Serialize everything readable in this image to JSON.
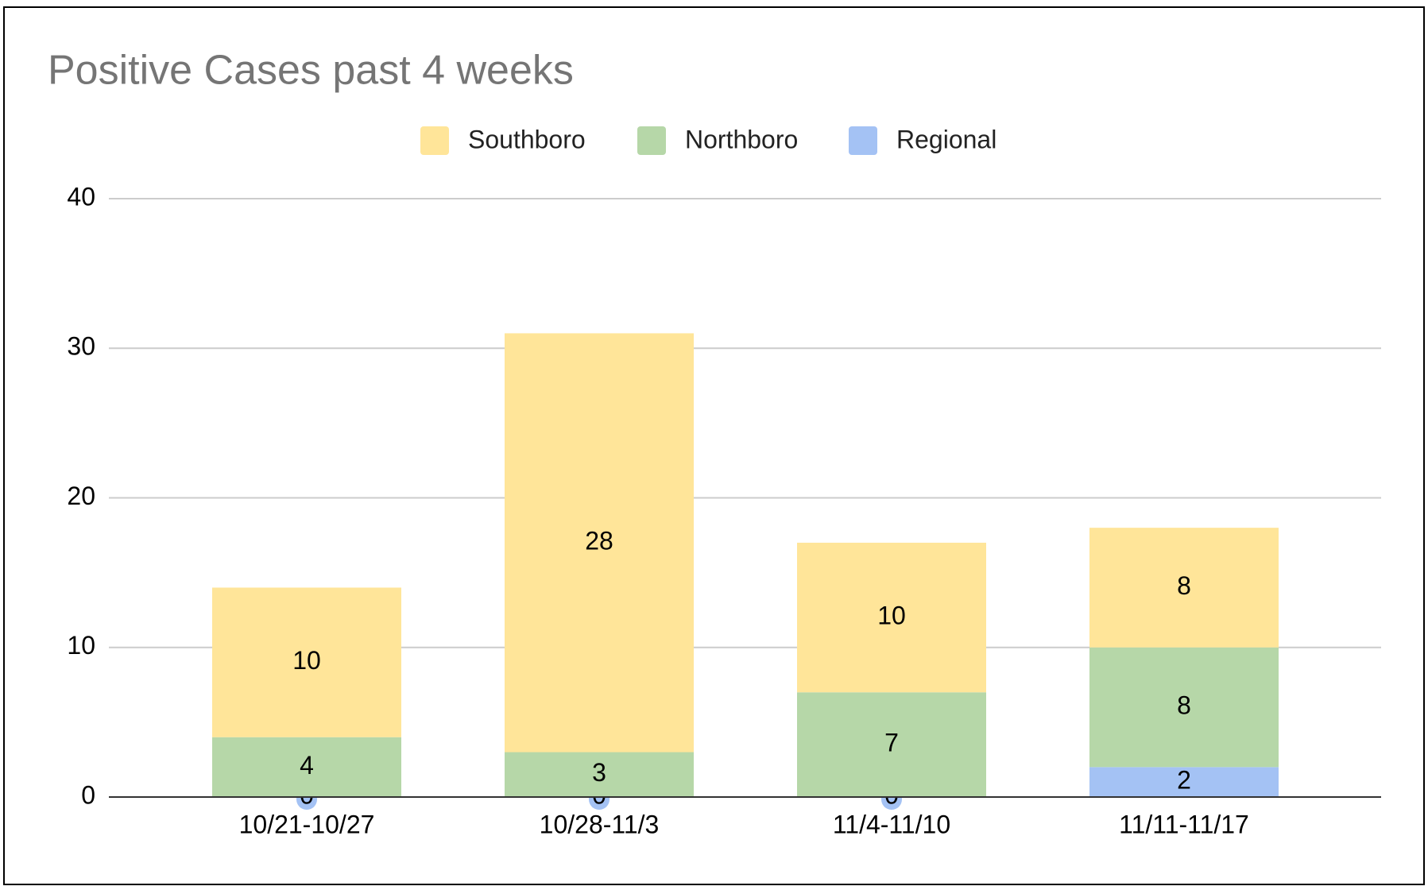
{
  "chart_data": {
    "type": "stacked_bar",
    "title": "Positive Cases past 4 weeks",
    "categories": [
      "10/21-10/27",
      "10/28-11/3",
      "11/4-11/10",
      "11/11-11/17"
    ],
    "series": [
      {
        "name": "Southboro",
        "color": "#ffe599",
        "values": [
          10,
          28,
          10,
          8
        ]
      },
      {
        "name": "Northboro",
        "color": "#b6d7a8",
        "values": [
          4,
          3,
          7,
          8
        ]
      },
      {
        "name": "Regional",
        "color": "#a4c2f4",
        "values": [
          0,
          0,
          0,
          2
        ]
      }
    ],
    "stack_order": [
      2,
      1,
      0
    ],
    "ylim": [
      0,
      40
    ],
    "yticks": [
      0,
      10,
      20,
      30,
      40
    ],
    "grid": true,
    "legend": "top"
  }
}
